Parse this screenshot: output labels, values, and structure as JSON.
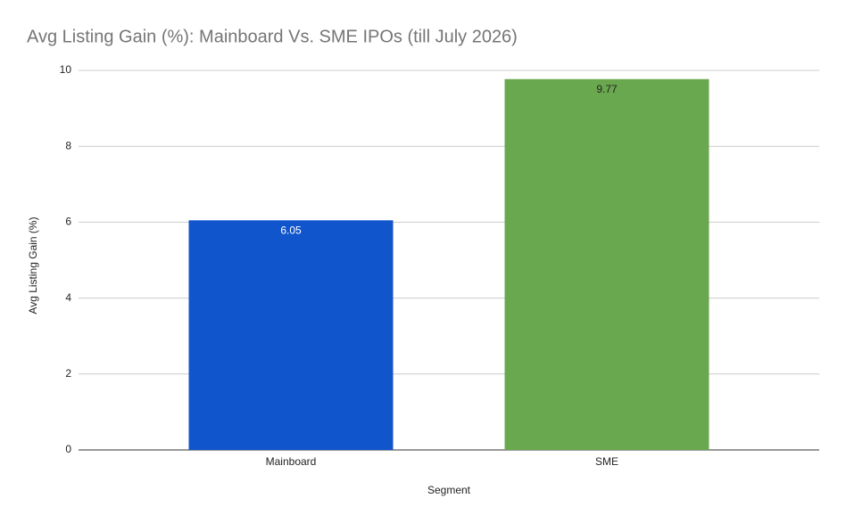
{
  "chart_data": {
    "type": "bar",
    "title": "Avg Listing Gain (%): Mainboard Vs. SME IPOs (till July 2026)",
    "x_label": "Segment",
    "y_label": "Avg Listing Gain (%)",
    "categories": [
      "Mainboard",
      "SME"
    ],
    "values": [
      6.05,
      9.77
    ],
    "colors": [
      "#1155cc",
      "#6aa84f"
    ],
    "ylim": [
      0,
      10
    ],
    "yticks": [
      0,
      2,
      4,
      6,
      8,
      10
    ],
    "grid": true,
    "data_labels": true
  }
}
